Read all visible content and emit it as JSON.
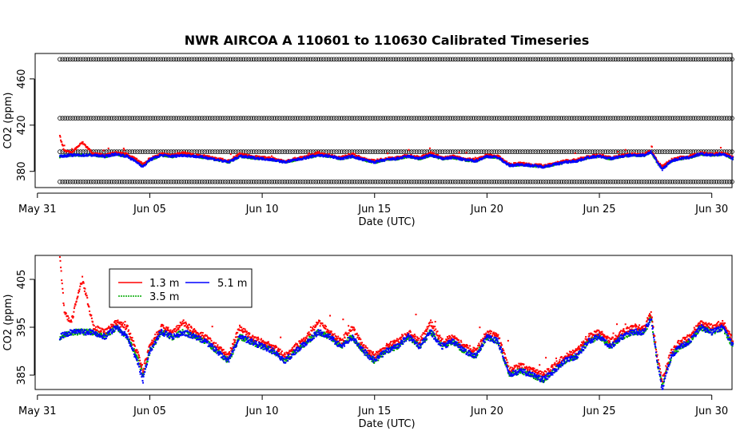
{
  "chart_data": [
    {
      "type": "scatter",
      "title": "NWR   AIRCOA  A   110601  to  110630   Calibrated Timeseries",
      "xlabel": "Date (UTC)",
      "ylabel": "CO2 (ppm)",
      "x_range_days": [
        -0.1,
        30.9
      ],
      "ylim": [
        366,
        482
      ],
      "x_ticks": [
        {
          "day": 0,
          "label": "May 31"
        },
        {
          "day": 5,
          "label": "Jun 05"
        },
        {
          "day": 10,
          "label": "Jun 10"
        },
        {
          "day": 15,
          "label": "Jun 15"
        },
        {
          "day": 20,
          "label": "Jun 20"
        },
        {
          "day": 25,
          "label": "Jun 25"
        },
        {
          "day": 30,
          "label": "Jun 30"
        }
      ],
      "y_ticks": [
        380,
        420,
        460
      ],
      "calibration_levels": [
        {
          "name": "circles",
          "values": [
            371,
            397,
            426,
            477
          ],
          "color": "#000000"
        }
      ],
      "x_start_day": 1.0,
      "x_end_day": 30.95,
      "series": [
        {
          "name": "1.3 m",
          "color": "#ff0000",
          "values": [
            [
              1.0,
              410
            ],
            [
              1.2,
              398
            ],
            [
              1.5,
              396
            ],
            [
              2.0,
              405
            ],
            [
              2.5,
              395
            ],
            [
              3.0,
              394
            ],
            [
              3.5,
              396
            ],
            [
              4.0,
              395
            ],
            [
              4.5,
              389
            ],
            [
              4.7,
              386
            ],
            [
              5.0,
              391
            ],
            [
              5.5,
              395
            ],
            [
              6.0,
              394
            ],
            [
              6.5,
              396
            ],
            [
              7.0,
              394
            ],
            [
              7.5,
              393
            ],
            [
              8.0,
              391
            ],
            [
              8.5,
              389
            ],
            [
              9.0,
              395
            ],
            [
              9.5,
              393
            ],
            [
              10.0,
              392
            ],
            [
              10.5,
              391
            ],
            [
              11.0,
              389
            ],
            [
              11.5,
              391
            ],
            [
              12.0,
              393
            ],
            [
              12.5,
              396
            ],
            [
              13.0,
              394
            ],
            [
              13.5,
              392
            ],
            [
              14.0,
              395
            ],
            [
              14.5,
              391
            ],
            [
              15.0,
              389
            ],
            [
              15.5,
              391
            ],
            [
              16.0,
              392
            ],
            [
              16.5,
              394
            ],
            [
              17.0,
              392
            ],
            [
              17.5,
              396
            ],
            [
              18.0,
              392
            ],
            [
              18.5,
              393
            ],
            [
              19.0,
              391
            ],
            [
              19.5,
              390
            ],
            [
              20.0,
              394
            ],
            [
              20.5,
              393
            ],
            [
              21.0,
              386
            ],
            [
              21.5,
              387
            ],
            [
              22.0,
              386
            ],
            [
              22.5,
              385
            ],
            [
              23.0,
              387
            ],
            [
              23.5,
              389
            ],
            [
              24.0,
              390
            ],
            [
              24.5,
              393
            ],
            [
              25.0,
              394
            ],
            [
              25.5,
              392
            ],
            [
              26.0,
              394
            ],
            [
              26.5,
              395
            ],
            [
              27.0,
              395
            ],
            [
              27.3,
              398
            ],
            [
              27.6,
              388
            ],
            [
              27.8,
              384
            ],
            [
              28.2,
              390
            ],
            [
              28.6,
              392
            ],
            [
              29.0,
              393
            ],
            [
              29.5,
              396
            ],
            [
              30.0,
              395
            ],
            [
              30.5,
              396
            ],
            [
              30.95,
              392
            ]
          ]
        },
        {
          "name": "3.5 m",
          "color": "#00aa00",
          "values": [
            [
              1.0,
              393
            ],
            [
              1.5,
              394
            ],
            [
              2.0,
              394
            ],
            [
              2.5,
              394
            ],
            [
              3.0,
              393
            ],
            [
              3.5,
              395
            ],
            [
              4.0,
              393
            ],
            [
              4.5,
              388
            ],
            [
              4.7,
              385
            ],
            [
              5.0,
              390
            ],
            [
              5.5,
              394
            ],
            [
              6.0,
              393
            ],
            [
              6.5,
              394
            ],
            [
              7.0,
              393
            ],
            [
              7.5,
              392
            ],
            [
              8.0,
              390
            ],
            [
              8.5,
              388
            ],
            [
              9.0,
              393
            ],
            [
              9.5,
              392
            ],
            [
              10.0,
              391
            ],
            [
              10.5,
              390
            ],
            [
              11.0,
              388
            ],
            [
              11.5,
              390
            ],
            [
              12.0,
              392
            ],
            [
              12.5,
              394
            ],
            [
              13.0,
              393
            ],
            [
              13.5,
              391
            ],
            [
              14.0,
              393
            ],
            [
              14.5,
              390
            ],
            [
              15.0,
              388
            ],
            [
              15.5,
              390
            ],
            [
              16.0,
              391
            ],
            [
              16.5,
              393
            ],
            [
              17.0,
              391
            ],
            [
              17.5,
              394
            ],
            [
              18.0,
              391
            ],
            [
              18.5,
              392
            ],
            [
              19.0,
              390
            ],
            [
              19.5,
              389
            ],
            [
              20.0,
              393
            ],
            [
              20.5,
              392
            ],
            [
              21.0,
              385
            ],
            [
              21.5,
              386
            ],
            [
              22.0,
              385
            ],
            [
              22.5,
              384
            ],
            [
              23.0,
              386
            ],
            [
              23.5,
              388
            ],
            [
              24.0,
              389
            ],
            [
              24.5,
              392
            ],
            [
              25.0,
              393
            ],
            [
              25.5,
              391
            ],
            [
              26.0,
              393
            ],
            [
              26.5,
              394
            ],
            [
              27.0,
              394
            ],
            [
              27.3,
              397
            ],
            [
              27.6,
              387
            ],
            [
              27.8,
              383
            ],
            [
              28.2,
              389
            ],
            [
              28.6,
              391
            ],
            [
              29.0,
              392
            ],
            [
              29.5,
              395
            ],
            [
              30.0,
              394
            ],
            [
              30.5,
              395
            ],
            [
              30.95,
              391
            ]
          ]
        },
        {
          "name": "5.1 m",
          "color": "#0000ff",
          "values": [
            [
              1.0,
              393
            ],
            [
              1.5,
              394
            ],
            [
              2.0,
              394
            ],
            [
              2.5,
              394
            ],
            [
              3.0,
              393
            ],
            [
              3.5,
              395
            ],
            [
              4.0,
              393
            ],
            [
              4.5,
              387
            ],
            [
              4.7,
              384
            ],
            [
              5.0,
              390
            ],
            [
              5.5,
              394
            ],
            [
              6.0,
              393
            ],
            [
              6.5,
              394
            ],
            [
              7.0,
              393
            ],
            [
              7.5,
              392
            ],
            [
              8.0,
              390
            ],
            [
              8.5,
              388
            ],
            [
              9.0,
              393
            ],
            [
              9.5,
              392
            ],
            [
              10.0,
              391
            ],
            [
              10.5,
              390
            ],
            [
              11.0,
              388
            ],
            [
              11.5,
              390
            ],
            [
              12.0,
              392
            ],
            [
              12.5,
              394
            ],
            [
              13.0,
              393
            ],
            [
              13.5,
              391
            ],
            [
              14.0,
              393
            ],
            [
              14.5,
              390
            ],
            [
              15.0,
              388
            ],
            [
              15.5,
              390
            ],
            [
              16.0,
              391
            ],
            [
              16.5,
              393
            ],
            [
              17.0,
              391
            ],
            [
              17.5,
              394
            ],
            [
              18.0,
              391
            ],
            [
              18.5,
              392
            ],
            [
              19.0,
              390
            ],
            [
              19.5,
              389
            ],
            [
              20.0,
              393
            ],
            [
              20.5,
              392
            ],
            [
              21.0,
              385
            ],
            [
              21.5,
              386
            ],
            [
              22.0,
              385
            ],
            [
              22.5,
              384
            ],
            [
              23.0,
              386
            ],
            [
              23.5,
              388
            ],
            [
              24.0,
              389
            ],
            [
              24.5,
              392
            ],
            [
              25.0,
              393
            ],
            [
              25.5,
              391
            ],
            [
              26.0,
              393
            ],
            [
              26.5,
              394
            ],
            [
              27.0,
              394
            ],
            [
              27.3,
              397
            ],
            [
              27.6,
              387
            ],
            [
              27.8,
              382
            ],
            [
              28.2,
              389
            ],
            [
              28.6,
              391
            ],
            [
              29.0,
              392
            ],
            [
              29.5,
              395
            ],
            [
              30.0,
              394
            ],
            [
              30.5,
              395
            ],
            [
              30.95,
              391
            ]
          ]
        }
      ]
    },
    {
      "type": "scatter",
      "title": "",
      "xlabel": "Date (UTC)",
      "ylabel": "CO2 (ppm)",
      "x_range_days": [
        -0.1,
        30.9
      ],
      "ylim": [
        382,
        410
      ],
      "x_ticks": [
        {
          "day": 0,
          "label": "May 31"
        },
        {
          "day": 5,
          "label": "Jun 05"
        },
        {
          "day": 10,
          "label": "Jun 10"
        },
        {
          "day": 15,
          "label": "Jun 15"
        },
        {
          "day": 20,
          "label": "Jun 20"
        },
        {
          "day": 25,
          "label": "Jun 25"
        },
        {
          "day": 30,
          "label": "Jun 30"
        }
      ],
      "y_ticks": [
        385,
        395,
        405
      ],
      "legend": {
        "position": "top-left",
        "entries": [
          {
            "label": "1.3 m",
            "color": "#ff0000"
          },
          {
            "label": "5.1 m",
            "color": "#0000ff"
          },
          {
            "label": "3.5 m",
            "color": "#00aa00"
          }
        ]
      },
      "series_ref": "same as panel 1 series (1.3 m, 3.5 m, 5.1 m)"
    }
  ]
}
